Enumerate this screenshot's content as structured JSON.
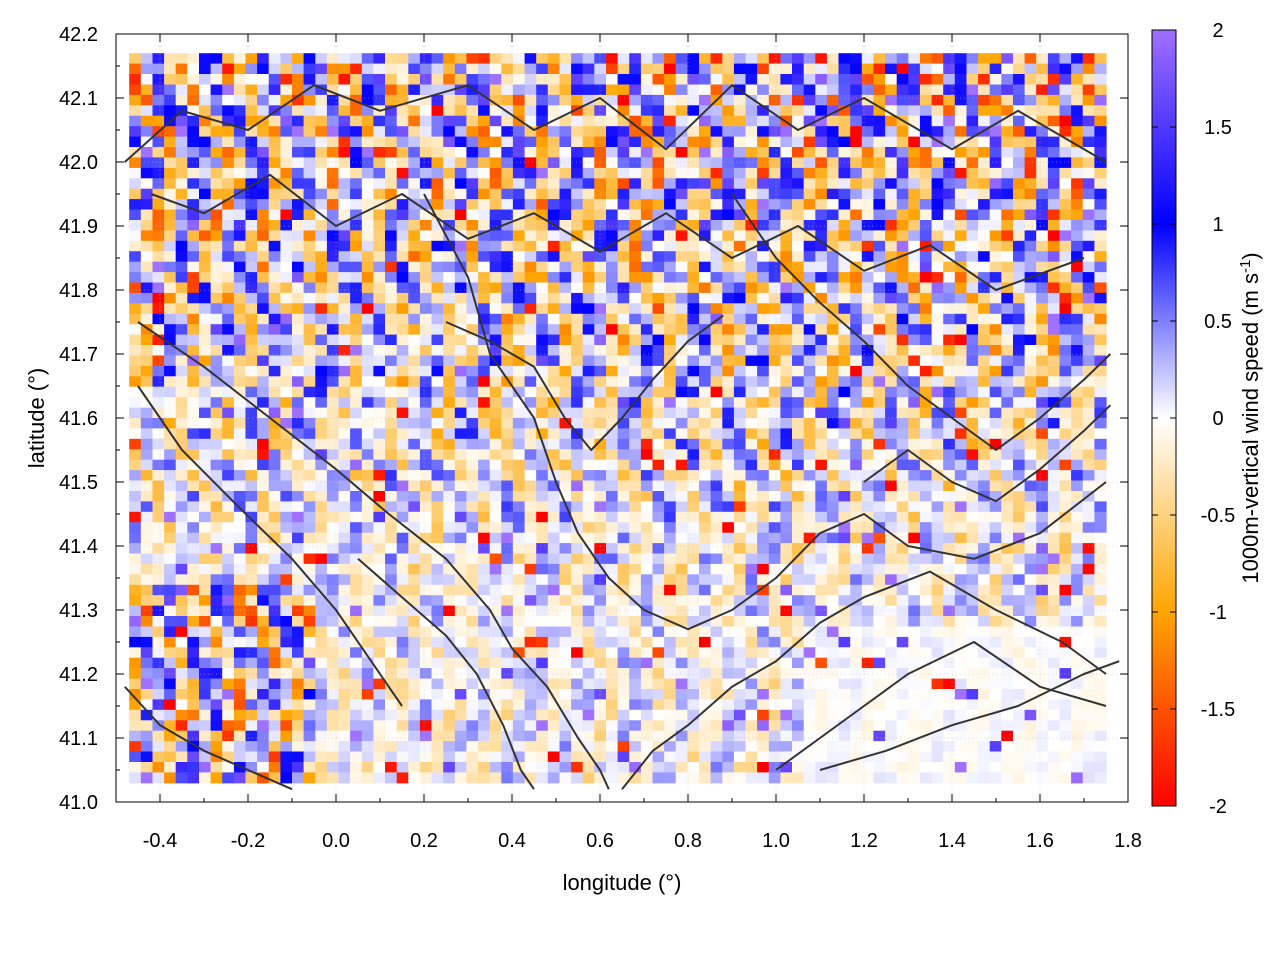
{
  "chart_data": {
    "type": "heatmap",
    "title": "",
    "xlabel": "longitude (°)",
    "ylabel": "latitude (°)",
    "colorbar_label": "1000m-vertical wind speed (m s",
    "colorbar_label_sup": "-1",
    "colorbar_label_close": ")",
    "xlim": [
      -0.5,
      1.8
    ],
    "ylim": [
      41.0,
      42.2
    ],
    "x_ticks": [
      -0.4,
      -0.2,
      0.0,
      0.2,
      0.4,
      0.6,
      0.8,
      1.0,
      1.2,
      1.4,
      1.6,
      1.8
    ],
    "x_tick_labels": [
      "-0.4",
      "-0.2",
      "0.0",
      "0.2",
      "0.4",
      "0.6",
      "0.8",
      "1.0",
      "1.2",
      "1.4",
      "1.6",
      "1.8"
    ],
    "y_ticks": [
      41.0,
      41.1,
      41.2,
      41.3,
      41.4,
      41.5,
      41.6,
      41.7,
      41.8,
      41.9,
      42.0,
      42.1,
      42.2
    ],
    "y_tick_labels": [
      "41.0",
      "41.1",
      "41.2",
      "41.3",
      "41.4",
      "41.5",
      "41.6",
      "41.7",
      "41.8",
      "41.9",
      "42.0",
      "42.1",
      "42.2"
    ],
    "colorbar_range": [
      -2,
      2
    ],
    "colorbar_ticks": [
      2,
      1.5,
      1,
      0.5,
      0,
      -0.5,
      -1,
      -1.5,
      -2
    ],
    "colorbar_tick_labels": [
      "2",
      "1.5",
      "1",
      "0.5",
      "0",
      "-0.5",
      "-1",
      "-1.5",
      "-2"
    ],
    "colormap": [
      {
        "value": -2,
        "color": "#ff0000"
      },
      {
        "value": -1,
        "color": "#ffa500"
      },
      {
        "value": 0,
        "color": "#ffffff"
      },
      {
        "value": 1,
        "color": "#0000ff"
      },
      {
        "value": 2,
        "color": "#a070ff"
      }
    ],
    "grid": true,
    "contour_color": "#333333"
  }
}
